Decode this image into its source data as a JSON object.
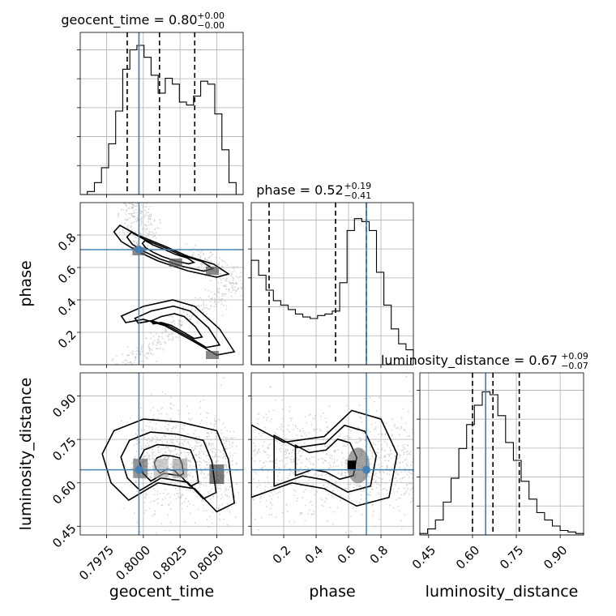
{
  "chart_data": {
    "type": "corner",
    "parameters": [
      {
        "name": "geocent_time",
        "title": "geocent_time = 0.80",
        "median": "0.80",
        "err_plus": "+0.00",
        "err_minus": "−0.00",
        "range": [
          0.7957,
          0.8068
        ],
        "ticks": [
          0.7975,
          0.8,
          0.8025,
          0.805
        ],
        "tick_labels": [
          "0.7975",
          "0.8000",
          "0.8025",
          "0.8050"
        ],
        "truth": 0.7997,
        "quantiles": [
          0.7989,
          0.8011,
          0.8035
        ]
      },
      {
        "name": "phase",
        "title": "phase = 0.52",
        "median": "0.52",
        "err_plus": "+0.19",
        "err_minus": "−0.41",
        "range": [
          0.0,
          1.0
        ],
        "ticks": [
          0.2,
          0.4,
          0.6,
          0.8
        ],
        "tick_labels": [
          "0.2",
          "0.4",
          "0.6",
          "0.8"
        ],
        "truth": 0.71,
        "quantiles": [
          0.11,
          0.52,
          0.71
        ]
      },
      {
        "name": "luminosity_distance",
        "title": "luminosity_distance = 0.67",
        "median": "0.67",
        "err_plus": "+0.09",
        "err_minus": "−0.07",
        "range": [
          0.42,
          0.98
        ],
        "ticks": [
          0.45,
          0.6,
          0.75,
          0.9
        ],
        "tick_labels": [
          "0.45",
          "0.60",
          "0.75",
          "0.90"
        ],
        "truth": 0.645,
        "quantiles": [
          0.6,
          0.67,
          0.76
        ]
      }
    ],
    "histograms": {
      "geocent_time": [
        0,
        0.02,
        0.08,
        0.18,
        0.34,
        0.56,
        0.84,
        0.97,
        1.0,
        0.92,
        0.8,
        0.68,
        0.78,
        0.74,
        0.62,
        0.6,
        0.66,
        0.76,
        0.74,
        0.54,
        0.3,
        0.08,
        0
      ],
      "phase": [
        0.7,
        0.6,
        0.5,
        0.43,
        0.4,
        0.37,
        0.34,
        0.32,
        0.31,
        0.33,
        0.34,
        0.36,
        0.55,
        0.9,
        0.98,
        0.96,
        0.9,
        0.62,
        0.4,
        0.24,
        0.14,
        0.1
      ],
      "luminosity_distance": [
        0.01,
        0.04,
        0.1,
        0.22,
        0.38,
        0.58,
        0.74,
        0.87,
        0.96,
        0.94,
        0.8,
        0.62,
        0.5,
        0.36,
        0.24,
        0.15,
        0.1,
        0.06,
        0.03,
        0.02,
        0.01
      ]
    },
    "grid": true
  }
}
